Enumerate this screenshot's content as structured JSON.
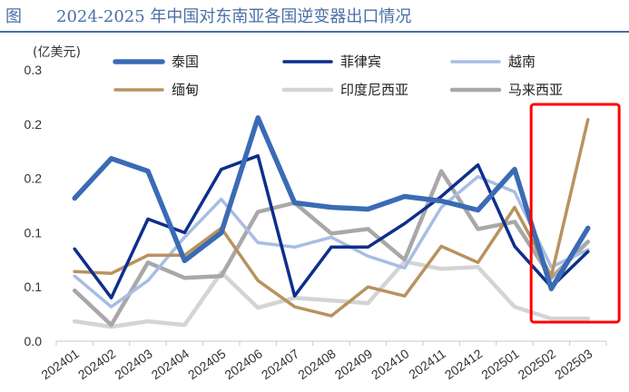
{
  "figure": {
    "label": "图",
    "title": "2024-2025 年中国对东南亚各国逆变器出口情况",
    "accent": "#4a6fa5"
  },
  "chart_data": {
    "type": "line",
    "unit": "(亿美元)",
    "categories": [
      "202401",
      "202402",
      "202403",
      "202404",
      "202405",
      "202406",
      "202407",
      "202408",
      "202409",
      "202410",
      "202411",
      "202412",
      "202501",
      "202502",
      "202503"
    ],
    "ytick_labels": [
      "0.0",
      "0.1",
      "0.1",
      "0.2",
      "0.2",
      "0.3"
    ],
    "ylim": [
      0,
      0.3
    ],
    "grid": false,
    "legend_position": "top",
    "series": [
      {
        "name": "泰国",
        "color": "#3a6bb5",
        "width": 5.5,
        "values": [
          0.158,
          0.202,
          0.188,
          0.089,
          0.12,
          0.247,
          0.153,
          0.148,
          0.146,
          0.16,
          0.155,
          0.145,
          0.19,
          0.058,
          0.125
        ]
      },
      {
        "name": "菲律宾",
        "color": "#0d2f8c",
        "width": 3.5,
        "values": [
          0.102,
          0.048,
          0.135,
          0.12,
          0.19,
          0.205,
          0.05,
          0.104,
          0.104,
          0.13,
          0.16,
          0.195,
          0.105,
          0.06,
          0.099
        ]
      },
      {
        "name": "越南",
        "color": "#a9bde3",
        "width": 3.5,
        "values": [
          0.072,
          0.038,
          0.067,
          0.115,
          0.157,
          0.109,
          0.104,
          0.115,
          0.094,
          0.081,
          0.148,
          0.182,
          0.165,
          0.082,
          0.101
        ]
      },
      {
        "name": "缅甸",
        "color": "#b8925f",
        "width": 3.5,
        "values": [
          0.077,
          0.075,
          0.095,
          0.095,
          0.125,
          0.067,
          0.038,
          0.028,
          0.06,
          0.05,
          0.105,
          0.087,
          0.148,
          0.072,
          0.245
        ]
      },
      {
        "name": "印度尼西亚",
        "color": "#d4d4d4",
        "width": 4.5,
        "values": [
          0.022,
          0.016,
          0.022,
          0.018,
          0.076,
          0.037,
          0.048,
          0.045,
          0.042,
          0.088,
          0.08,
          0.082,
          0.038,
          0.025,
          0.025
        ]
      },
      {
        "name": "马来西亚",
        "color": "#a8a8a8",
        "width": 4.5,
        "values": [
          0.056,
          0.018,
          0.087,
          0.07,
          0.072,
          0.143,
          0.153,
          0.119,
          0.124,
          0.09,
          0.188,
          0.124,
          0.132,
          0.07,
          0.11
        ]
      }
    ],
    "highlight": {
      "categories": [
        "202502",
        "202503"
      ],
      "color": "#ff0000"
    }
  }
}
